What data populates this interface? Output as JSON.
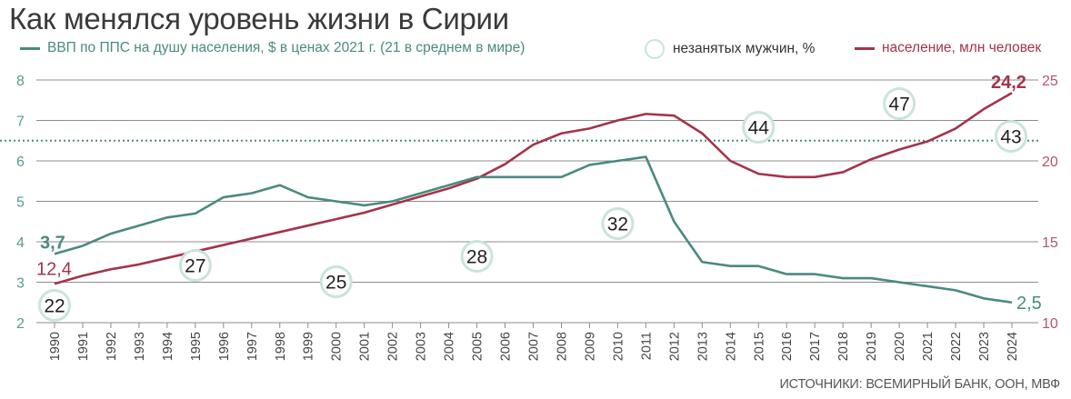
{
  "title": "Как менялся уровень жизни в Сирии",
  "legend": {
    "gdp": "ВВП по ППС на душу населения, $ в ценах 2021 г. (21 в среднем в мире)",
    "unemployed": "незанятых мужчин, %",
    "population": "население, млн человек"
  },
  "source": "ИСТОЧНИКИ: ВСЕМИРНЫЙ БАНК, ООН, МВФ",
  "colors": {
    "gdp": "#4a8a80",
    "population": "#a3344a",
    "circle_border": "#c9e4dc",
    "grid": "#8c8c8c",
    "left_axis": "#5a9a90",
    "right_axis": "#b5566a"
  },
  "chart_data": {
    "type": "line",
    "x": [
      1990,
      1991,
      1992,
      1993,
      1994,
      1995,
      1996,
      1997,
      1998,
      1999,
      2000,
      2001,
      2002,
      2003,
      2004,
      2005,
      2006,
      2007,
      2008,
      2009,
      2010,
      2011,
      2012,
      2013,
      2014,
      2015,
      2016,
      2017,
      2018,
      2019,
      2020,
      2021,
      2022,
      2023,
      2024
    ],
    "y_left": {
      "ylim": [
        2,
        8
      ],
      "ticks": [
        "2",
        "3",
        "4",
        "5",
        "6",
        "7",
        "8"
      ]
    },
    "y_right": {
      "ylim": [
        10,
        25
      ],
      "ticks": [
        "10",
        "15",
        "20",
        "25"
      ]
    },
    "series": [
      {
        "name": "ВВП по ППС на душу населения, $ в ценах 2021 г. (21 в среднем в мире)",
        "axis": "left",
        "values": [
          3.7,
          3.9,
          4.2,
          4.4,
          4.6,
          4.7,
          5.1,
          5.2,
          5.4,
          5.1,
          5.0,
          4.9,
          5.0,
          5.2,
          5.4,
          5.6,
          5.6,
          5.6,
          5.6,
          5.9,
          6.0,
          6.1,
          4.5,
          3.5,
          3.4,
          3.4,
          3.2,
          3.2,
          3.1,
          3.1,
          3.0,
          2.9,
          2.8,
          2.6,
          2.5
        ]
      },
      {
        "name": "население, млн человек",
        "axis": "right",
        "values": [
          12.4,
          12.9,
          13.3,
          13.6,
          14.0,
          14.4,
          14.8,
          15.2,
          15.6,
          16.0,
          16.4,
          16.8,
          17.3,
          17.8,
          18.3,
          18.9,
          19.8,
          21.0,
          21.7,
          22.0,
          22.5,
          22.9,
          22.8,
          21.7,
          20.0,
          19.2,
          19.0,
          19.0,
          19.3,
          20.1,
          20.7,
          21.2,
          22.0,
          23.2,
          24.2
        ]
      }
    ],
    "unemployed_men": [
      {
        "year": 1990,
        "value": "22"
      },
      {
        "year": 1995,
        "value": "27"
      },
      {
        "year": 2000,
        "value": "25"
      },
      {
        "year": 2005,
        "value": "28"
      },
      {
        "year": 2010,
        "value": "32"
      },
      {
        "year": 2015,
        "value": "44"
      },
      {
        "year": 2020,
        "value": "47"
      },
      {
        "year": 2024,
        "value": "43"
      }
    ],
    "world_average_gdp": 21,
    "labels": {
      "gdp_start": "3,7",
      "gdp_end": "2,5",
      "pop_start": "12,4",
      "pop_end": "24,2"
    }
  }
}
